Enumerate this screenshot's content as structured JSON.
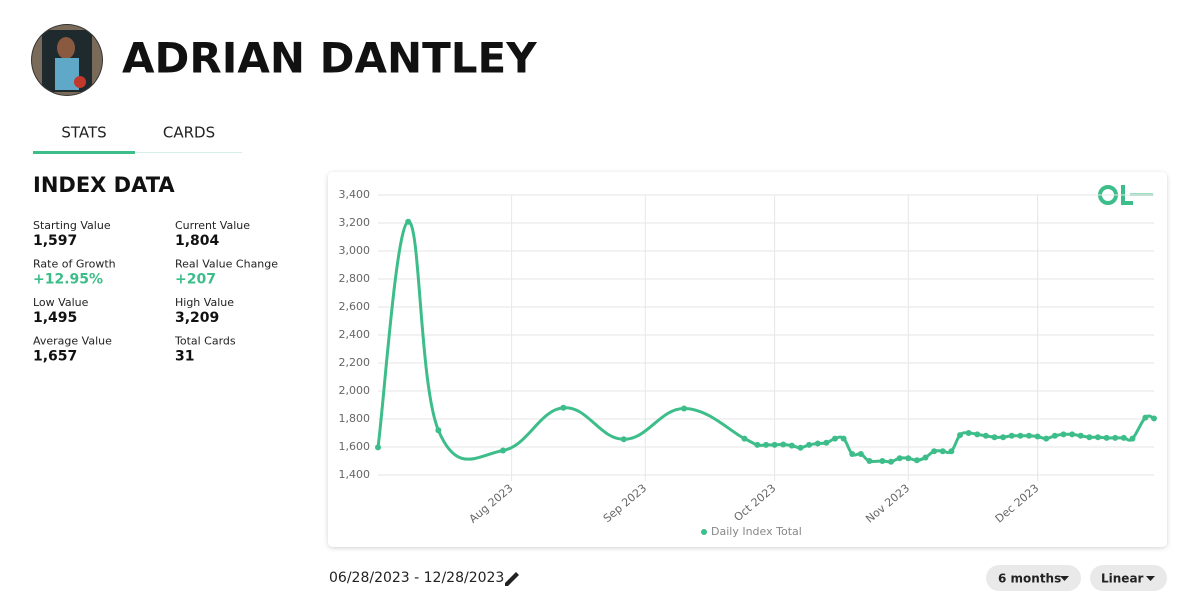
{
  "header": {
    "name": "ADRIAN DANTLEY"
  },
  "tabs": [
    "STATS",
    "CARDS"
  ],
  "section_title": "INDEX DATA",
  "stats": [
    {
      "label": "Starting Value",
      "value": "1,597"
    },
    {
      "label": "Current Value",
      "value": "1,804"
    },
    {
      "label": "Rate of Growth",
      "value": "+12.95%"
    },
    {
      "label": "Real Value Change",
      "value": "+207"
    },
    {
      "label": "Low Value",
      "value": "1,495"
    },
    {
      "label": "High Value",
      "value": "3,209"
    },
    {
      "label": "Average Value",
      "value": "1,657"
    },
    {
      "label": "Total Cards",
      "value": "31"
    }
  ],
  "chart_data": {
    "type": "line",
    "x": [
      0,
      7,
      14,
      29,
      43,
      57,
      71,
      85,
      88,
      90,
      92,
      94,
      96,
      98,
      100,
      102,
      104,
      106,
      108,
      110,
      112,
      114,
      117,
      119,
      121,
      123,
      125,
      127,
      129,
      131,
      133,
      135,
      137,
      139,
      141,
      143,
      145,
      147,
      149,
      151,
      153,
      155,
      157,
      159,
      161,
      163,
      165,
      167,
      169,
      171,
      173,
      175,
      178,
      180
    ],
    "series": [
      {
        "name": "Daily Index Total",
        "color": "#3dbd8a",
        "values": [
          1597,
          3209,
          1720,
          1575,
          1880,
          1655,
          1875,
          1660,
          1615,
          1615,
          1615,
          1618,
          1610,
          1595,
          1615,
          1625,
          1630,
          1660,
          1660,
          1550,
          1550,
          1500,
          1500,
          1495,
          1520,
          1520,
          1505,
          1525,
          1570,
          1570,
          1570,
          1685,
          1700,
          1690,
          1680,
          1670,
          1670,
          1680,
          1680,
          1680,
          1675,
          1660,
          1680,
          1690,
          1690,
          1680,
          1670,
          1670,
          1665,
          1665,
          1665,
          1660,
          1810,
          1804
        ]
      }
    ],
    "xlim": [
      0,
      180
    ],
    "xticks": [
      {
        "value": 31,
        "label": "Aug 2023"
      },
      {
        "value": 62,
        "label": "Sep 2023"
      },
      {
        "value": 92,
        "label": "Oct 2023"
      },
      {
        "value": 123,
        "label": "Nov 2023"
      },
      {
        "value": 153,
        "label": "Dec 2023"
      }
    ],
    "ylim": [
      1400,
      3400
    ],
    "yticks": [
      {
        "value": 1400,
        "label": "1,400"
      },
      {
        "value": 1600,
        "label": "1,600"
      },
      {
        "value": 1800,
        "label": "1,800"
      },
      {
        "value": 2000,
        "label": "2,000"
      },
      {
        "value": 2200,
        "label": "2,200"
      },
      {
        "value": 2400,
        "label": "2,400"
      },
      {
        "value": 2600,
        "label": "2,600"
      },
      {
        "value": 2800,
        "label": "2,800"
      },
      {
        "value": 3000,
        "label": "3,000"
      },
      {
        "value": 3200,
        "label": "3,200"
      },
      {
        "value": 3400,
        "label": "3,400"
      }
    ],
    "grid": true,
    "legend": "bottom"
  },
  "date_range": "06/28/2023 - 12/28/2023",
  "controls": [
    "6 months",
    "Linear"
  ]
}
